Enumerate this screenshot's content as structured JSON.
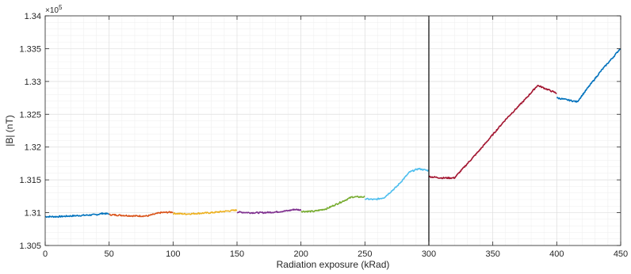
{
  "chart_data": {
    "type": "line",
    "xlabel": "Radiation exposure (kRad)",
    "ylabel": "|B| (nT)",
    "y_exponent_label": "×10",
    "y_exponent_power": "5",
    "xlim": [
      0,
      450
    ],
    "ylim": [
      1.305,
      1.34
    ],
    "xticks": [
      0,
      50,
      100,
      150,
      200,
      250,
      300,
      350,
      400,
      450
    ],
    "xtick_labels": [
      "0",
      "50",
      "100",
      "150",
      "200",
      "250",
      "300",
      "350",
      "400",
      "450"
    ],
    "yticks": [
      1.305,
      1.31,
      1.315,
      1.32,
      1.325,
      1.33,
      1.335,
      1.34
    ],
    "ytick_labels": [
      "1.305",
      "1.31",
      "1.315",
      "1.32",
      "1.325",
      "1.33",
      "1.335",
      "1.34"
    ],
    "grid": true,
    "minor_grid": true,
    "vertical_marker_x": 300,
    "series": [
      {
        "color": "#0072BD",
        "x": [
          0,
          10,
          20,
          30,
          40,
          45,
          50
        ],
        "y": [
          1.3094,
          1.3094,
          1.3095,
          1.3096,
          1.3097,
          1.3099,
          1.3098
        ]
      },
      {
        "color": "#D95319",
        "x": [
          50,
          60,
          70,
          80,
          90,
          100
        ],
        "y": [
          1.3097,
          1.3096,
          1.3095,
          1.3095,
          1.31,
          1.3101
        ]
      },
      {
        "color": "#EDB120",
        "x": [
          100,
          110,
          120,
          130,
          140,
          150
        ],
        "y": [
          1.3099,
          1.3098,
          1.3099,
          1.31,
          1.3102,
          1.3104
        ]
      },
      {
        "color": "#7E2F8E",
        "x": [
          150,
          160,
          170,
          180,
          190,
          195,
          200
        ],
        "y": [
          1.3101,
          1.31,
          1.31,
          1.3101,
          1.3103,
          1.3105,
          1.3104
        ]
      },
      {
        "color": "#77AC30",
        "x": [
          200,
          210,
          220,
          230,
          240,
          250
        ],
        "y": [
          1.3102,
          1.3102,
          1.3106,
          1.3115,
          1.3124,
          1.3124
        ]
      },
      {
        "color": "#4DBEEE",
        "x": [
          250,
          258,
          265,
          275,
          285,
          292,
          300
        ],
        "y": [
          1.3121,
          1.312,
          1.3123,
          1.314,
          1.3162,
          1.3167,
          1.3164
        ]
      },
      {
        "color": "#A2142F",
        "x": [
          300,
          305,
          310,
          320,
          340,
          360,
          375,
          385,
          390,
          400
        ],
        "y": [
          1.3155,
          1.3154,
          1.3153,
          1.3153,
          1.3196,
          1.3242,
          1.3272,
          1.3294,
          1.329,
          1.3282
        ]
      },
      {
        "color": "#0072BD",
        "x": [
          400,
          408,
          416,
          425,
          435,
          445,
          450
        ],
        "y": [
          1.3275,
          1.3272,
          1.3269,
          1.3292,
          1.3317,
          1.3339,
          1.3351
        ]
      }
    ]
  }
}
